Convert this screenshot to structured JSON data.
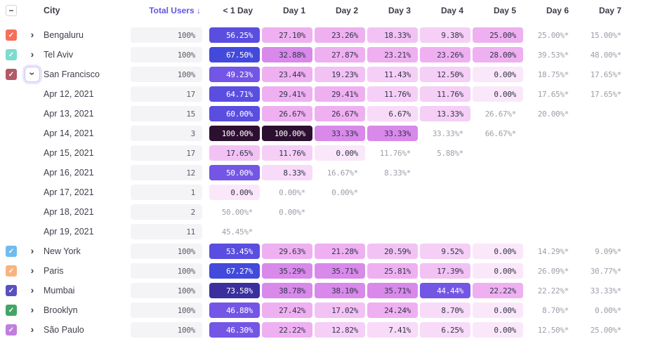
{
  "header": {
    "city_label": "City",
    "total_users_label": "Total Users ↓",
    "day_columns": [
      "< 1 Day",
      "Day 1",
      "Day 2",
      "Day 3",
      "Day 4",
      "Day 5",
      "Day 6",
      "Day 7"
    ],
    "select_all_state": "indeterminate"
  },
  "glyphs": {
    "minus": "−",
    "check": "✓",
    "chevron": "›"
  },
  "colors": {
    "sort_header": "#5F57E5",
    "header_text": "#3B3C48",
    "row_text": "#3E3F4B",
    "total_pill_bg": "#F4F4F6",
    "total_pill_text": "#5A5B66",
    "estimated_text": "#9EA0AA",
    "cell_text_dark": "#33344A",
    "cell_text_light": "#FFFFFF",
    "focus_ring": "#EBE6FC",
    "focus_border": "#CFC5F3"
  },
  "colormap": [
    [
      99.99,
      "#2D1031"
    ],
    [
      72,
      "#3B2F9E"
    ],
    [
      66,
      "#4349DB"
    ],
    [
      52,
      "#5A4EE0"
    ],
    [
      40,
      "#7456E6"
    ],
    [
      31,
      "#D889EA"
    ],
    [
      21,
      "#EFB0F1"
    ],
    [
      15,
      "#F2C2F4"
    ],
    [
      9,
      "#F5CFF6"
    ],
    [
      0.01,
      "#F8DBF8"
    ],
    [
      -1,
      "#FAE8FA"
    ]
  ],
  "white_text_threshold": 40,
  "rows": [
    {
      "type": "city",
      "name": "Bengaluru",
      "color": "#F4705A",
      "expanded": false,
      "total": "100%",
      "cells": [
        {
          "t": "56.25%"
        },
        {
          "t": "27.10%"
        },
        {
          "t": "23.26%"
        },
        {
          "t": "18.33%"
        },
        {
          "t": "9.38%"
        },
        {
          "t": "25.00%"
        },
        {
          "t": "25.00%*",
          "e": 1
        },
        {
          "t": "15.00%*",
          "e": 1
        }
      ]
    },
    {
      "type": "city",
      "name": "Tel Aviv",
      "color": "#7CDCCE",
      "expanded": false,
      "total": "100%",
      "cells": [
        {
          "t": "67.50%"
        },
        {
          "t": "32.88%"
        },
        {
          "t": "27.87%"
        },
        {
          "t": "23.21%"
        },
        {
          "t": "23.26%"
        },
        {
          "t": "28.00%"
        },
        {
          "t": "39.53%*",
          "e": 1
        },
        {
          "t": "48.00%*",
          "e": 1
        }
      ]
    },
    {
      "type": "city",
      "name": "San Francisco",
      "color": "#B15A67",
      "expanded": true,
      "total": "100%",
      "cells": [
        {
          "t": "49.23%"
        },
        {
          "t": "23.44%"
        },
        {
          "t": "19.23%"
        },
        {
          "t": "11.43%"
        },
        {
          "t": "12.50%"
        },
        {
          "t": "0.00%"
        },
        {
          "t": "18.75%*",
          "e": 1
        },
        {
          "t": "17.65%*",
          "e": 1
        }
      ]
    },
    {
      "type": "date",
      "name": "Apr 12, 2021",
      "total": "17",
      "cells": [
        {
          "t": "64.71%"
        },
        {
          "t": "29.41%"
        },
        {
          "t": "29.41%"
        },
        {
          "t": "11.76%"
        },
        {
          "t": "11.76%"
        },
        {
          "t": "0.00%"
        },
        {
          "t": "17.65%*",
          "e": 1
        },
        {
          "t": "17.65%*",
          "e": 1
        }
      ]
    },
    {
      "type": "date",
      "name": "Apr 13, 2021",
      "total": "15",
      "cells": [
        {
          "t": "60.00%"
        },
        {
          "t": "26.67%"
        },
        {
          "t": "26.67%"
        },
        {
          "t": "6.67%"
        },
        {
          "t": "13.33%"
        },
        {
          "t": "26.67%*",
          "e": 1
        },
        {
          "t": "20.00%*",
          "e": 1
        },
        null
      ]
    },
    {
      "type": "date",
      "name": "Apr 14, 2021",
      "total": "3",
      "cells": [
        {
          "t": "100.00%"
        },
        {
          "t": "100.00%"
        },
        {
          "t": "33.33%"
        },
        {
          "t": "33.33%"
        },
        {
          "t": "33.33%*",
          "e": 1
        },
        {
          "t": "66.67%*",
          "e": 1
        },
        null,
        null
      ]
    },
    {
      "type": "date",
      "name": "Apr 15, 2021",
      "total": "17",
      "cells": [
        {
          "t": "17.65%"
        },
        {
          "t": "11.76%"
        },
        {
          "t": "0.00%"
        },
        {
          "t": "11.76%*",
          "e": 1
        },
        {
          "t": "5.88%*",
          "e": 1
        },
        null,
        null,
        null
      ]
    },
    {
      "type": "date",
      "name": "Apr 16, 2021",
      "total": "12",
      "cells": [
        {
          "t": "50.00%"
        },
        {
          "t": "8.33%"
        },
        {
          "t": "16.67%*",
          "e": 1
        },
        {
          "t": "8.33%*",
          "e": 1
        },
        null,
        null,
        null,
        null
      ]
    },
    {
      "type": "date",
      "name": "Apr 17, 2021",
      "total": "1",
      "cells": [
        {
          "t": "0.00%"
        },
        {
          "t": "0.00%*",
          "e": 1
        },
        {
          "t": "0.00%*",
          "e": 1
        },
        null,
        null,
        null,
        null,
        null
      ]
    },
    {
      "type": "date",
      "name": "Apr 18, 2021",
      "total": "2",
      "cells": [
        {
          "t": "50.00%*",
          "e": 1
        },
        {
          "t": "0.00%*",
          "e": 1
        },
        null,
        null,
        null,
        null,
        null,
        null
      ]
    },
    {
      "type": "date",
      "name": "Apr 19, 2021",
      "total": "11",
      "cells": [
        {
          "t": "45.45%*",
          "e": 1
        },
        null,
        null,
        null,
        null,
        null,
        null,
        null
      ]
    },
    {
      "type": "city",
      "name": "New York",
      "color": "#6FBCEF",
      "expanded": false,
      "total": "100%",
      "cells": [
        {
          "t": "53.45%"
        },
        {
          "t": "29.63%"
        },
        {
          "t": "21.28%"
        },
        {
          "t": "20.59%"
        },
        {
          "t": "9.52%"
        },
        {
          "t": "0.00%"
        },
        {
          "t": "14.29%*",
          "e": 1
        },
        {
          "t": "9.09%*",
          "e": 1
        }
      ]
    },
    {
      "type": "city",
      "name": "Paris",
      "color": "#F9B380",
      "expanded": false,
      "total": "100%",
      "cells": [
        {
          "t": "67.27%"
        },
        {
          "t": "35.29%"
        },
        {
          "t": "35.71%"
        },
        {
          "t": "25.81%"
        },
        {
          "t": "17.39%"
        },
        {
          "t": "0.00%"
        },
        {
          "t": "26.09%*",
          "e": 1
        },
        {
          "t": "30.77%*",
          "e": 1
        }
      ]
    },
    {
      "type": "city",
      "name": "Mumbai",
      "color": "#5951C0",
      "expanded": false,
      "total": "100%",
      "cells": [
        {
          "t": "73.58%"
        },
        {
          "t": "38.78%"
        },
        {
          "t": "38.10%"
        },
        {
          "t": "35.71%"
        },
        {
          "t": "44.44%"
        },
        {
          "t": "22.22%"
        },
        {
          "t": "22.22%*",
          "e": 1
        },
        {
          "t": "33.33%*",
          "e": 1
        }
      ]
    },
    {
      "type": "city",
      "name": "Brooklyn",
      "color": "#41A665",
      "expanded": false,
      "total": "100%",
      "cells": [
        {
          "t": "46.88%"
        },
        {
          "t": "27.42%"
        },
        {
          "t": "17.02%"
        },
        {
          "t": "24.24%"
        },
        {
          "t": "8.70%"
        },
        {
          "t": "0.00%"
        },
        {
          "t": "8.70%*",
          "e": 1
        },
        {
          "t": "0.00%*",
          "e": 1
        }
      ]
    },
    {
      "type": "city",
      "name": "São Paulo",
      "color": "#C07EDD",
      "expanded": false,
      "total": "100%",
      "cells": [
        {
          "t": "46.30%"
        },
        {
          "t": "22.22%"
        },
        {
          "t": "12.82%"
        },
        {
          "t": "7.41%"
        },
        {
          "t": "6.25%"
        },
        {
          "t": "0.00%"
        },
        {
          "t": "12.50%*",
          "e": 1
        },
        {
          "t": "25.00%*",
          "e": 1
        }
      ]
    }
  ]
}
